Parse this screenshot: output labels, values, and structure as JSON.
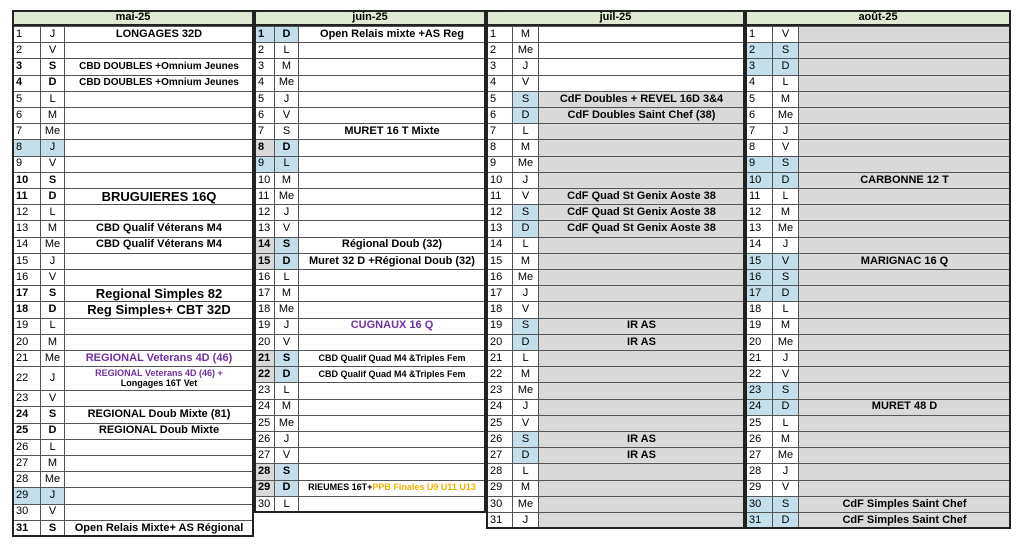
{
  "months": [
    {
      "title": "mai-25",
      "hl_bold": true,
      "holiday_fill": "#c5dfea",
      "rows": [
        {
          "num": 1,
          "day": "J",
          "event": "LONGAGES 32D"
        },
        {
          "num": 2,
          "day": "V"
        },
        {
          "num": 3,
          "day": "S",
          "hl": true,
          "event": "CBD DOUBLES +Omnium Jeunes",
          "event_size": 10
        },
        {
          "num": 4,
          "day": "D",
          "hl": true,
          "event": "CBD DOUBLES +Omnium Jeunes",
          "event_size": 10
        },
        {
          "num": 5,
          "day": "L"
        },
        {
          "num": 6,
          "day": "M"
        },
        {
          "num": 7,
          "day": "Me"
        },
        {
          "num": 8,
          "day": "J",
          "holiday": true
        },
        {
          "num": 9,
          "day": "V"
        },
        {
          "num": 10,
          "day": "S",
          "hl": true
        },
        {
          "num": 11,
          "day": "D",
          "hl": true,
          "event": "BRUGUIERES 16Q",
          "event_size": 13
        },
        {
          "num": 12,
          "day": "L"
        },
        {
          "num": 13,
          "day": "M",
          "event": "CBD Qualif Véterans M4"
        },
        {
          "num": 14,
          "day": "Me",
          "event": "CBD Qualif Véterans M4"
        },
        {
          "num": 15,
          "day": "J"
        },
        {
          "num": 16,
          "day": "V"
        },
        {
          "num": 17,
          "day": "S",
          "hl": true,
          "event": "Regional Simples 82",
          "event_size": 13
        },
        {
          "num": 18,
          "day": "D",
          "hl": true,
          "event": "Reg Simples+ CBT 32D",
          "event_size": 13
        },
        {
          "num": 19,
          "day": "L"
        },
        {
          "num": 20,
          "day": "M"
        },
        {
          "num": 21,
          "day": "Me",
          "event": "REGIONAL Veterans 4D (46)",
          "event_color": "#7030a0"
        },
        {
          "num": 22,
          "day": "J",
          "event_size": 9,
          "event_parts": [
            {
              "text": "REGIONAL Veterans 4D (46) +",
              "color": "#7030a0"
            },
            {
              "text": "Longages 16T Vet",
              "color": "#000000",
              "break": true
            }
          ]
        },
        {
          "num": 23,
          "day": "V"
        },
        {
          "num": 24,
          "day": "S",
          "hl": true,
          "event": "REGIONAL Doub Mixte (81)"
        },
        {
          "num": 25,
          "day": "D",
          "hl": true,
          "event": "REGIONAL Doub Mixte"
        },
        {
          "num": 26,
          "day": "L"
        },
        {
          "num": 27,
          "day": "M"
        },
        {
          "num": 28,
          "day": "Me"
        },
        {
          "num": 29,
          "day": "J",
          "holiday": true
        },
        {
          "num": 30,
          "day": "V"
        },
        {
          "num": 31,
          "day": "S",
          "hl": true,
          "event": "Open Relais Mixte+ AS Régional"
        }
      ]
    },
    {
      "title": "juin-25",
      "hl_bold": true,
      "hl_num_fill": "#d9d9d9",
      "hl_day_fill": "#c5dfea",
      "holiday_fill": "#c5dfea",
      "rows": [
        {
          "num": 1,
          "day": "D",
          "hl": true,
          "holiday": true,
          "event": "Open Relais mixte +AS Reg"
        },
        {
          "num": 2,
          "day": "L"
        },
        {
          "num": 3,
          "day": "M"
        },
        {
          "num": 4,
          "day": "Me"
        },
        {
          "num": 5,
          "day": "J"
        },
        {
          "num": 6,
          "day": "V"
        },
        {
          "num": 7,
          "day": "S",
          "event": "MURET 16 T Mixte"
        },
        {
          "num": 8,
          "day": "D",
          "hl": true
        },
        {
          "num": 9,
          "day": "L",
          "holiday": true
        },
        {
          "num": 10,
          "day": "M"
        },
        {
          "num": 11,
          "day": "Me"
        },
        {
          "num": 12,
          "day": "J"
        },
        {
          "num": 13,
          "day": "V"
        },
        {
          "num": 14,
          "day": "S",
          "hl": true,
          "event": "Régional Doub (32)"
        },
        {
          "num": 15,
          "day": "D",
          "hl": true,
          "event": "Muret 32 D +Régional Doub (32)"
        },
        {
          "num": 16,
          "day": "L"
        },
        {
          "num": 17,
          "day": "M"
        },
        {
          "num": 18,
          "day": "Me"
        },
        {
          "num": 19,
          "day": "J",
          "event": "CUGNAUX 16 Q",
          "event_color": "#7030a0"
        },
        {
          "num": 20,
          "day": "V"
        },
        {
          "num": 21,
          "day": "S",
          "hl": true,
          "event": "CBD  Qualif Quad  M4 &Triples Fem",
          "event_size": 9
        },
        {
          "num": 22,
          "day": "D",
          "hl": true,
          "event": "CBD  Qualif Quad  M4 &Triples Fem",
          "event_size": 9
        },
        {
          "num": 23,
          "day": "L"
        },
        {
          "num": 24,
          "day": "M"
        },
        {
          "num": 25,
          "day": "Me"
        },
        {
          "num": 26,
          "day": "J"
        },
        {
          "num": 27,
          "day": "V"
        },
        {
          "num": 28,
          "day": "S",
          "hl": true
        },
        {
          "num": 29,
          "day": "D",
          "hl": true,
          "event_size": 9,
          "event_parts": [
            {
              "text": "RIEUMES 16T+",
              "color": "#000000"
            },
            {
              "text": "PPB Finales U9 U11 U13",
              "color": "#f0b000"
            }
          ]
        },
        {
          "num": 30,
          "day": "L"
        }
      ]
    },
    {
      "title": "juil-25",
      "hl_day_fill": "#c5dfea",
      "event_fill": "#d9d9d9",
      "event_fill_from": 4,
      "rows": [
        {
          "num": 1,
          "day": "M"
        },
        {
          "num": 2,
          "day": "Me"
        },
        {
          "num": 3,
          "day": "J"
        },
        {
          "num": 4,
          "day": "V"
        },
        {
          "num": 5,
          "day": "S",
          "hl": true,
          "event": "CdF Doubles + REVEL 16D 3&4"
        },
        {
          "num": 6,
          "day": "D",
          "hl": true,
          "event": "CdF Doubles Saint Chef (38)"
        },
        {
          "num": 7,
          "day": "L"
        },
        {
          "num": 8,
          "day": "M"
        },
        {
          "num": 9,
          "day": "Me"
        },
        {
          "num": 10,
          "day": "J"
        },
        {
          "num": 11,
          "day": "V",
          "event": "CdF Quad St Genix Aoste 38"
        },
        {
          "num": 12,
          "day": "S",
          "hl": true,
          "event": "CdF Quad St Genix Aoste 38"
        },
        {
          "num": 13,
          "day": "D",
          "hl": true,
          "event": "CdF Quad St Genix Aoste 38"
        },
        {
          "num": 14,
          "day": "L"
        },
        {
          "num": 15,
          "day": "M"
        },
        {
          "num": 16,
          "day": "Me"
        },
        {
          "num": 17,
          "day": "J"
        },
        {
          "num": 18,
          "day": "V"
        },
        {
          "num": 19,
          "day": "S",
          "hl": true,
          "event": "IR AS"
        },
        {
          "num": 20,
          "day": "D",
          "hl": true,
          "event": "IR AS"
        },
        {
          "num": 21,
          "day": "L"
        },
        {
          "num": 22,
          "day": "M"
        },
        {
          "num": 23,
          "day": "Me"
        },
        {
          "num": 24,
          "day": "J"
        },
        {
          "num": 25,
          "day": "V"
        },
        {
          "num": 26,
          "day": "S",
          "hl": true,
          "event": "IR AS"
        },
        {
          "num": 27,
          "day": "D",
          "hl": true,
          "event": "IR AS"
        },
        {
          "num": 28,
          "day": "L"
        },
        {
          "num": 29,
          "day": "M"
        },
        {
          "num": 30,
          "day": "Me"
        },
        {
          "num": 31,
          "day": "J"
        }
      ]
    },
    {
      "title": "août-25",
      "hl_num_fill": "#c5dfea",
      "hl_day_fill": "#c5dfea",
      "event_fill": "#d9d9d9",
      "event_fill_from": 0,
      "rows": [
        {
          "num": 1,
          "day": "V"
        },
        {
          "num": 2,
          "day": "S",
          "hl": true
        },
        {
          "num": 3,
          "day": "D",
          "hl": true
        },
        {
          "num": 4,
          "day": "L"
        },
        {
          "num": 5,
          "day": "M"
        },
        {
          "num": 6,
          "day": "Me"
        },
        {
          "num": 7,
          "day": "J"
        },
        {
          "num": 8,
          "day": "V"
        },
        {
          "num": 9,
          "day": "S",
          "hl": true
        },
        {
          "num": 10,
          "day": "D",
          "hl": true,
          "event": "CARBONNE 12 T"
        },
        {
          "num": 11,
          "day": "L"
        },
        {
          "num": 12,
          "day": "M"
        },
        {
          "num": 13,
          "day": "Me"
        },
        {
          "num": 14,
          "day": "J"
        },
        {
          "num": 15,
          "day": "V",
          "hl": true,
          "event": "MARIGNAC 16 Q"
        },
        {
          "num": 16,
          "day": "S",
          "hl": true
        },
        {
          "num": 17,
          "day": "D",
          "hl": true
        },
        {
          "num": 18,
          "day": "L"
        },
        {
          "num": 19,
          "day": "M"
        },
        {
          "num": 20,
          "day": "Me"
        },
        {
          "num": 21,
          "day": "J"
        },
        {
          "num": 22,
          "day": "V"
        },
        {
          "num": 23,
          "day": "S",
          "hl": true
        },
        {
          "num": 24,
          "day": "D",
          "hl": true,
          "event": "MURET 48 D"
        },
        {
          "num": 25,
          "day": "L"
        },
        {
          "num": 26,
          "day": "M"
        },
        {
          "num": 27,
          "day": "Me"
        },
        {
          "num": 28,
          "day": "J"
        },
        {
          "num": 29,
          "day": "V"
        },
        {
          "num": 30,
          "day": "S",
          "hl": true,
          "event": "CdF Simples  Saint Chef"
        },
        {
          "num": 31,
          "day": "D",
          "hl": true,
          "event": "CdF Simples  Saint Chef"
        }
      ]
    }
  ]
}
